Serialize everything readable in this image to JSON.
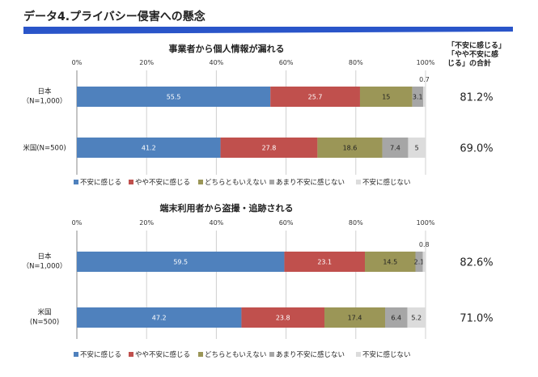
{
  "page": {
    "title": "データ4.プライバシー侵害への懸念",
    "right_header": "「不安に感じる」「やや不安に感じる」の合計"
  },
  "chart_data": [
    {
      "type": "bar",
      "stacked": true,
      "orientation": "horizontal",
      "title": "事業者から個人情報が漏れる",
      "xlim": [
        0,
        100
      ],
      "xticks": [
        "0%",
        "20%",
        "40%",
        "60%",
        "80%",
        "100%"
      ],
      "grid": true,
      "legend": "bottom",
      "categories": [
        {
          "label": "日本",
          "sublabel": "（N=1,000）",
          "total": "81.2%"
        },
        {
          "label": "米国(N=500)",
          "sublabel": "",
          "total": "69.0%"
        }
      ],
      "series": [
        {
          "name": "不安に感じる",
          "color": "#4f81bd",
          "values": [
            55.5,
            41.2
          ]
        },
        {
          "name": "やや不安に感じる",
          "color": "#c0504d",
          "values": [
            25.7,
            27.8
          ]
        },
        {
          "name": "どちらともいえない",
          "color": "#9b9657",
          "values": [
            15,
            18.6
          ]
        },
        {
          "name": "あまり不安に感じない",
          "color": "#a6a6a6",
          "values": [
            3.1,
            7.4
          ]
        },
        {
          "name": "不安に感じない",
          "color": "#dcdcdc",
          "values": [
            0.7,
            5
          ]
        }
      ],
      "value_labels": [
        [
          "55.5",
          "25.7",
          "15",
          "3.1",
          "0.7"
        ],
        [
          "41.2",
          "27.8",
          "18.6",
          "7.4",
          "5"
        ]
      ]
    },
    {
      "type": "bar",
      "stacked": true,
      "orientation": "horizontal",
      "title": "端末利用者から盗撮・追跡される",
      "xlim": [
        0,
        100
      ],
      "xticks": [
        "0%",
        "20%",
        "40%",
        "60%",
        "80%",
        "100%"
      ],
      "grid": true,
      "legend": "bottom",
      "categories": [
        {
          "label": "日本",
          "sublabel": "（N=1,000）",
          "total": "82.6%"
        },
        {
          "label": "米国",
          "sublabel": "(N=500)",
          "total": "71.0%"
        }
      ],
      "series": [
        {
          "name": "不安に感じる",
          "color": "#4f81bd",
          "values": [
            59.5,
            47.2
          ]
        },
        {
          "name": "やや不安に感じる",
          "color": "#c0504d",
          "values": [
            23.1,
            23.8
          ]
        },
        {
          "name": "どちらともいえない",
          "color": "#9b9657",
          "values": [
            14.5,
            17.4
          ]
        },
        {
          "name": "あまり不安に感じない",
          "color": "#a6a6a6",
          "values": [
            2.1,
            6.4
          ]
        },
        {
          "name": "不安に感じない",
          "color": "#dcdcdc",
          "values": [
            0.8,
            5.2
          ]
        }
      ],
      "value_labels": [
        [
          "59.5",
          "23.1",
          "14.5",
          "2.1",
          "0.8"
        ],
        [
          "47.2",
          "23.8",
          "17.4",
          "6.4",
          "5.2"
        ]
      ]
    }
  ]
}
